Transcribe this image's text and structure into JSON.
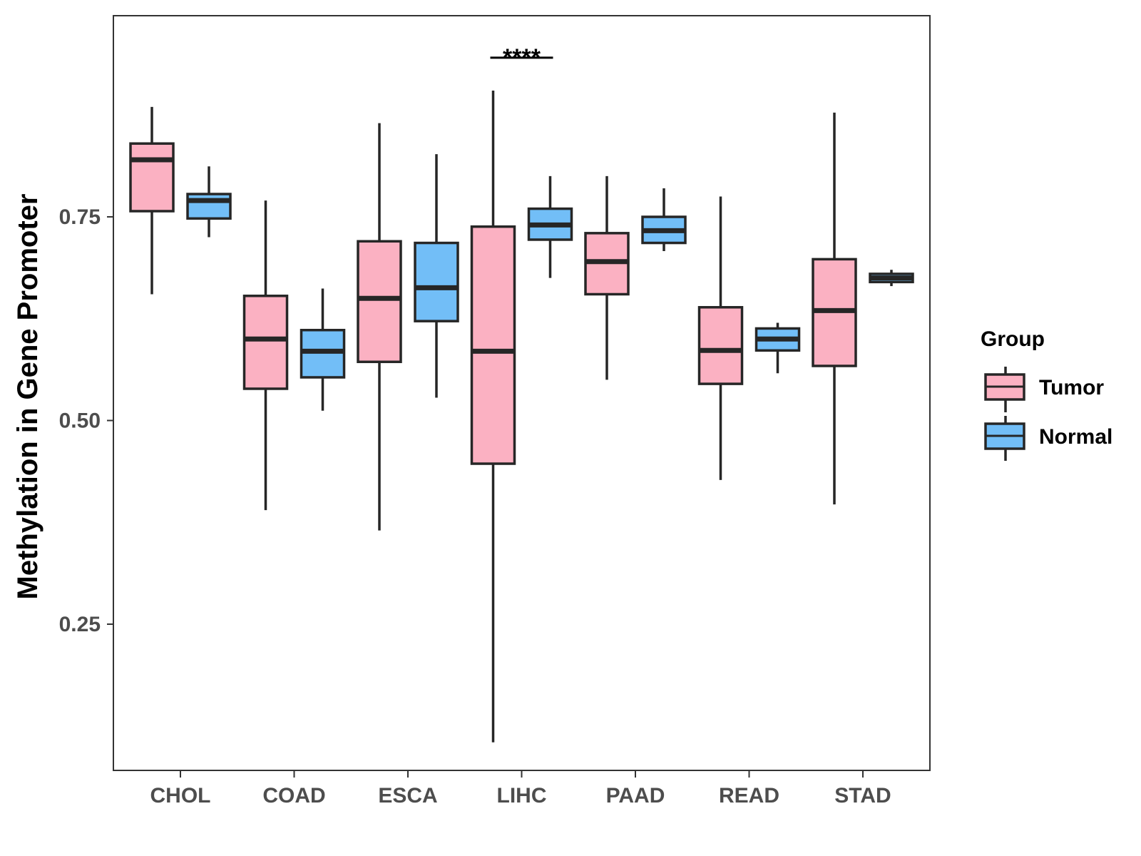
{
  "chart_data": {
    "type": "box",
    "title": "",
    "xlabel": "",
    "ylabel": "Methylation in Gene Promoter",
    "ylim": [
      0.08,
      1.0
    ],
    "yticks": [
      0.25,
      0.5,
      0.75
    ],
    "ytick_labels": [
      "0.25",
      "0.50",
      "0.75"
    ],
    "categories": [
      "CHOL",
      "COAD",
      "ESCA",
      "LIHC",
      "PAAD",
      "READ",
      "STAD"
    ],
    "legend": {
      "title": "Group",
      "position": "right"
    },
    "series": [
      {
        "name": "Tumor",
        "color": "#FBB1C2",
        "boxes": [
          {
            "min": 0.655,
            "q1": 0.757,
            "median": 0.82,
            "q3": 0.84,
            "max": 0.885
          },
          {
            "min": 0.39,
            "q1": 0.539,
            "median": 0.6,
            "q3": 0.653,
            "max": 0.77
          },
          {
            "min": 0.365,
            "q1": 0.572,
            "median": 0.65,
            "q3": 0.72,
            "max": 0.865
          },
          {
            "min": 0.105,
            "q1": 0.447,
            "median": 0.585,
            "q3": 0.738,
            "max": 0.905
          },
          {
            "min": 0.55,
            "q1": 0.655,
            "median": 0.695,
            "q3": 0.73,
            "max": 0.8
          },
          {
            "min": 0.427,
            "q1": 0.545,
            "median": 0.586,
            "q3": 0.639,
            "max": 0.775
          },
          {
            "min": 0.397,
            "q1": 0.567,
            "median": 0.635,
            "q3": 0.698,
            "max": 0.878
          }
        ]
      },
      {
        "name": "Normal",
        "color": "#72BEF7",
        "boxes": [
          {
            "min": 0.725,
            "q1": 0.748,
            "median": 0.77,
            "q3": 0.778,
            "max": 0.812
          },
          {
            "min": 0.512,
            "q1": 0.553,
            "median": 0.585,
            "q3": 0.611,
            "max": 0.662
          },
          {
            "min": 0.528,
            "q1": 0.622,
            "median": 0.663,
            "q3": 0.718,
            "max": 0.827
          },
          {
            "min": 0.675,
            "q1": 0.722,
            "median": 0.74,
            "q3": 0.76,
            "max": 0.8
          },
          {
            "min": 0.708,
            "q1": 0.718,
            "median": 0.733,
            "q3": 0.75,
            "max": 0.785
          },
          {
            "min": 0.558,
            "q1": 0.586,
            "median": 0.6,
            "q3": 0.613,
            "max": 0.62
          },
          {
            "min": 0.665,
            "q1": 0.67,
            "median": 0.675,
            "q3": 0.68,
            "max": 0.685
          }
        ]
      }
    ],
    "annotations": [
      {
        "text": "****",
        "category": "LIHC",
        "y": 0.955
      }
    ]
  }
}
